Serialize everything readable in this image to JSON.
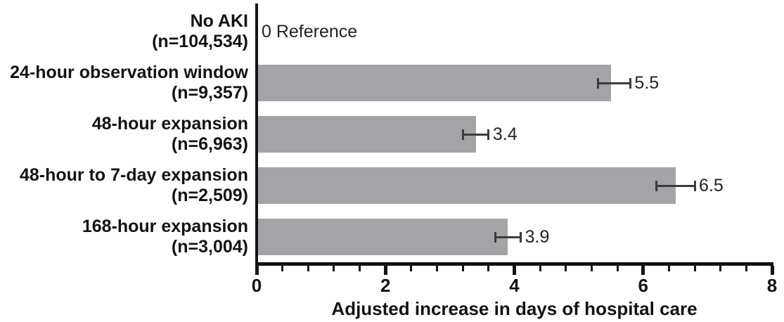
{
  "colors": {
    "bar_fill": "#a4a4a6",
    "axis": "#141414",
    "error_bar": "#3c3c3c",
    "label_text": "#131313",
    "value_text": "#232323",
    "background": "#ffffff"
  },
  "chart_data": {
    "type": "bar",
    "orientation": "horizontal",
    "title": "",
    "xlabel": "Adjusted increase in days of hospital care",
    "ylabel": "",
    "xlim": [
      0,
      8
    ],
    "x_major_ticks": [
      "0",
      "2",
      "4",
      "6",
      "8"
    ],
    "x_major_tick_values": [
      0,
      2,
      4,
      6,
      8
    ],
    "x_minor_tick_interval": 0.4,
    "grid": false,
    "legend": false,
    "reference_row_label": "0 Reference",
    "categories": [
      "No AKI (n=104,534)",
      "24-hour observation window (n=9,357)",
      "48-hour expansion (n=6,963)",
      "48-hour to 7-day expansion (n=2,509)",
      "168-hour expansion (n=3,004)"
    ],
    "values": [
      0,
      5.5,
      3.4,
      6.5,
      3.9
    ],
    "rows": [
      {
        "group": "No AKI",
        "n_label": "(n=104,534)",
        "value": 0,
        "display": "0 Reference",
        "is_reference": true,
        "ci": null
      },
      {
        "group": "24-hour observation window",
        "n_label": "(n=9,357)",
        "value": 5.5,
        "display": "5.5",
        "is_reference": false,
        "ci": [
          5.3,
          5.8
        ]
      },
      {
        "group": "48-hour expansion",
        "n_label": "(n=6,963)",
        "value": 3.4,
        "display": "3.4",
        "is_reference": false,
        "ci": [
          3.2,
          3.6
        ]
      },
      {
        "group": "48-hour to 7-day expansion",
        "n_label": "(n=2,509)",
        "value": 6.5,
        "display": "6.5",
        "is_reference": false,
        "ci": [
          6.2,
          6.8
        ]
      },
      {
        "group": "168-hour expansion",
        "n_label": "(n=3,004)",
        "value": 3.9,
        "display": "3.9",
        "is_reference": false,
        "ci": [
          3.7,
          4.1
        ]
      }
    ]
  }
}
